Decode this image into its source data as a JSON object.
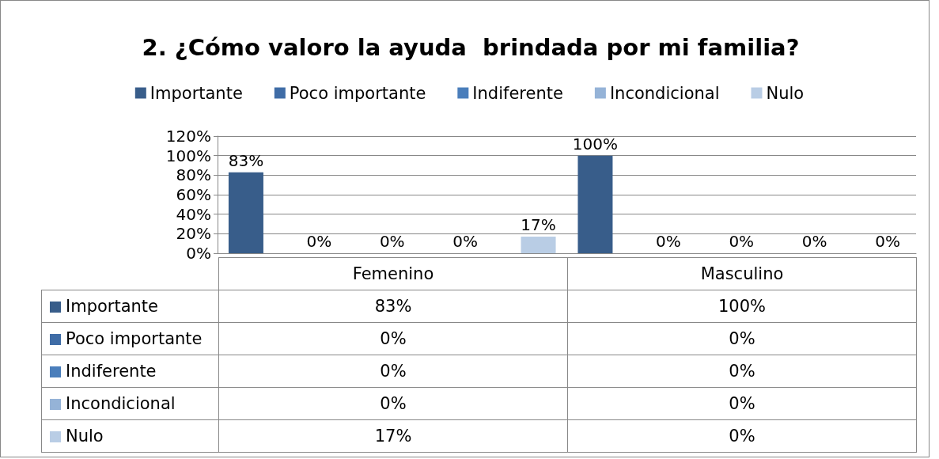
{
  "chart_data": {
    "type": "bar",
    "title": "2. ¿Cómo valoro la ayuda  brindada por mi familia?",
    "categories": [
      "Femenino",
      "Masculino"
    ],
    "series": [
      {
        "name": "Importante",
        "color": "#385d8a",
        "values": [
          83,
          100
        ],
        "value_labels": [
          "83%",
          "100%"
        ]
      },
      {
        "name": "Poco importante",
        "color": "#3f6ca6",
        "values": [
          0,
          0
        ],
        "value_labels": [
          "0%",
          "0%"
        ]
      },
      {
        "name": "Indiferente",
        "color": "#4a7ebb",
        "values": [
          0,
          0
        ],
        "value_labels": [
          "0%",
          "0%"
        ]
      },
      {
        "name": "Incondicional",
        "color": "#95b3d7",
        "values": [
          0,
          0
        ],
        "value_labels": [
          "0%",
          "0%"
        ]
      },
      {
        "name": "Nulo",
        "color": "#b9cde5",
        "values": [
          17,
          0
        ],
        "value_labels": [
          "17%",
          "0%"
        ]
      }
    ],
    "ylim": [
      0,
      120
    ],
    "yticks": [
      {
        "value": 0,
        "label": "0%"
      },
      {
        "value": 20,
        "label": "20%"
      },
      {
        "value": 40,
        "label": "40%"
      },
      {
        "value": 60,
        "label": "60%"
      },
      {
        "value": 80,
        "label": "80%"
      },
      {
        "value": 100,
        "label": "100%"
      },
      {
        "value": 120,
        "label": "120%"
      }
    ],
    "grid": "y",
    "legend": "top"
  }
}
